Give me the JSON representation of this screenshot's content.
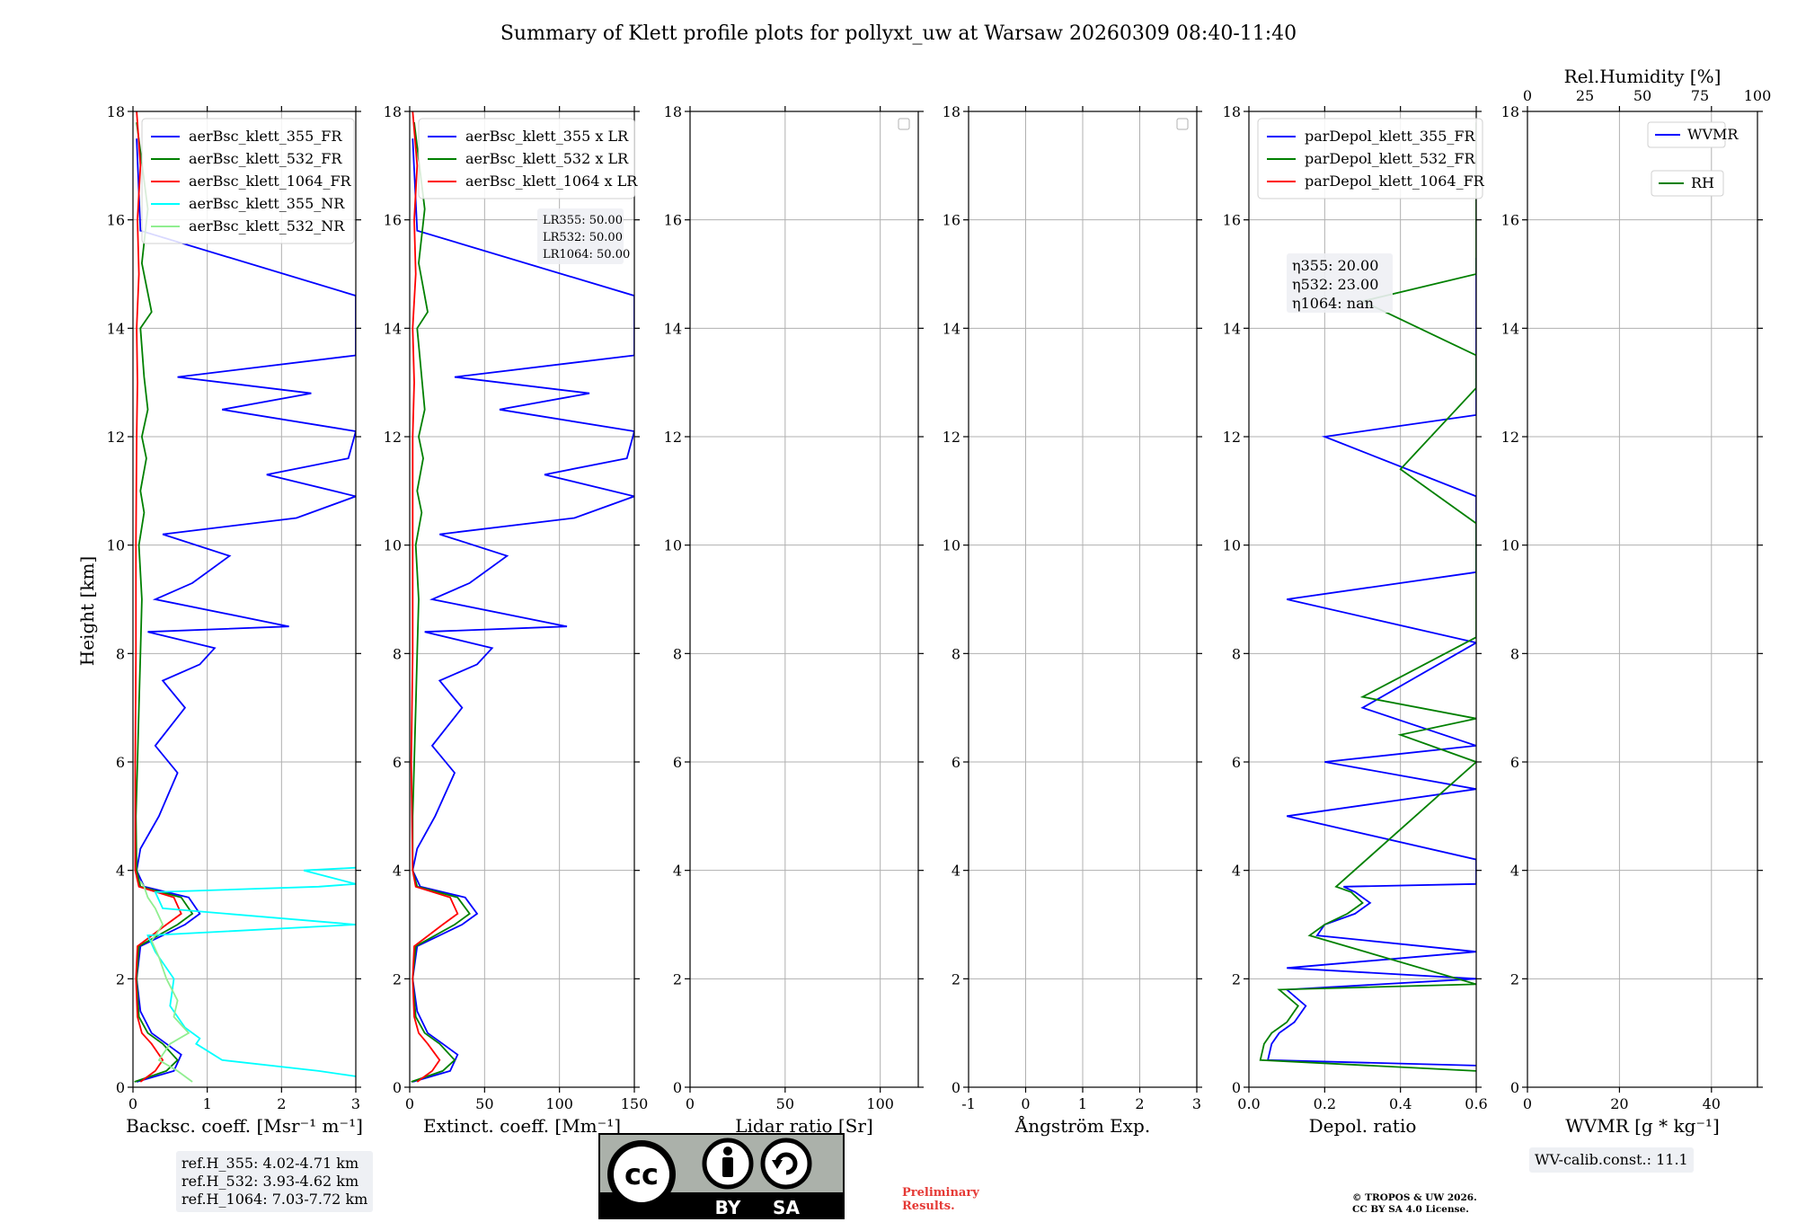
{
  "figure": {
    "title": "Summary of Klett profile plots for pollyxt_uw at Warsaw 20260309 08:40-11:40",
    "ylabel": "Height [km]",
    "reference_heights": [
      "ref.H_355: 4.02-4.71 km",
      "ref.H_532: 3.93-4.62 km",
      "ref.H_1064: 7.03-7.72 km"
    ],
    "wv_calib": "WV-calib.const.: 11.1",
    "preliminary": [
      "Preliminary",
      "Results."
    ],
    "copyright": [
      "© TROPOS & UW 2026.",
      "CC BY SA 4.0 License."
    ],
    "license_badge": {
      "icon": "cc-by-sa-icon",
      "text_by": "BY",
      "text_sa": "SA"
    }
  },
  "chart_data": [
    {
      "id": "bsc",
      "type": "line",
      "xlabel": "Backsc. coeff. [Msr⁻¹ m⁻¹]",
      "xlim": [
        0,
        3
      ],
      "xticks": [
        0,
        1,
        2,
        3
      ],
      "ylim": [
        0,
        18
      ],
      "yticks": [
        0,
        2,
        4,
        6,
        8,
        10,
        12,
        14,
        16,
        18
      ],
      "legend": [
        "aerBsc_klett_355_FR",
        "aerBsc_klett_532_FR",
        "aerBsc_klett_1064_FR",
        "aerBsc_klett_355_NR",
        "aerBsc_klett_532_NR"
      ],
      "series": [
        {
          "name": "aerBsc_klett_355_FR",
          "color": "#0000ff",
          "x": [
            0.05,
            0.55,
            0.65,
            0.45,
            0.25,
            0.1,
            0.05,
            0.1,
            0.7,
            0.9,
            0.75,
            0.15,
            0.05,
            0.1,
            0.35,
            0.6,
            0.3,
            0.7,
            0.4,
            0.9,
            1.1,
            0.2,
            2.1,
            0.3,
            0.8,
            1.3,
            0.4,
            2.2,
            3,
            1.8,
            2.9,
            3,
            1.2,
            2.4,
            0.6,
            3,
            3,
            3,
            0.1,
            0.05
          ],
          "y": [
            0.1,
            0.3,
            0.6,
            0.8,
            1,
            1.4,
            2,
            2.6,
            3,
            3.2,
            3.5,
            3.7,
            4,
            4.4,
            5,
            5.8,
            6.3,
            7,
            7.5,
            7.8,
            8.1,
            8.4,
            8.5,
            9,
            9.3,
            9.8,
            10.2,
            10.5,
            10.9,
            11.3,
            11.6,
            12.1,
            12.5,
            12.8,
            13.1,
            13.5,
            14.2,
            14.6,
            15.8,
            17.5
          ]
        },
        {
          "name": "aerBsc_klett_532_FR",
          "color": "#008000",
          "x": [
            0.02,
            0.45,
            0.6,
            0.4,
            0.2,
            0.08,
            0.05,
            0.08,
            0.6,
            0.8,
            0.65,
            0.1,
            0.05,
            0.04,
            0.06,
            0.08,
            0.1,
            0.12,
            0.08,
            0.15,
            0.1,
            0.18,
            0.12,
            0.2,
            0.15,
            0.1,
            0.25,
            0.12,
            0.2,
            0.05
          ],
          "y": [
            0.1,
            0.3,
            0.5,
            0.8,
            1,
            1.3,
            2,
            2.6,
            3,
            3.2,
            3.5,
            3.7,
            4,
            5,
            6,
            7,
            8,
            9,
            10,
            10.6,
            11,
            11.6,
            12,
            12.5,
            13.1,
            14,
            14.3,
            15.2,
            16.2,
            17.8
          ]
        },
        {
          "name": "aerBsc_klett_1064_FR",
          "color": "#ff0000",
          "x": [
            0.1,
            0.3,
            0.4,
            0.25,
            0.12,
            0.06,
            0.04,
            0.06,
            0.45,
            0.65,
            0.55,
            0.08,
            0.03,
            0.03,
            0.04,
            0.04,
            0.05,
            0.06,
            0.05,
            0.08,
            0.06,
            0.1,
            0.05
          ],
          "y": [
            0.1,
            0.3,
            0.5,
            0.8,
            1,
            1.3,
            2,
            2.6,
            3,
            3.2,
            3.5,
            3.7,
            4,
            6,
            8,
            10,
            12,
            13,
            14,
            15,
            16,
            17,
            18
          ]
        },
        {
          "name": "aerBsc_klett_355_NR",
          "color": "#00ffff",
          "x": [
            3,
            2.5,
            1.2,
            0.85,
            0.9,
            0.7,
            0.5,
            0.55,
            0.3,
            0.2,
            3,
            0.4,
            0.3,
            2.5,
            3,
            2.3,
            3
          ],
          "y": [
            0.2,
            0.3,
            0.5,
            0.8,
            0.9,
            1.1,
            1.5,
            2,
            2.5,
            2.8,
            3,
            3.3,
            3.6,
            3.7,
            3.75,
            4,
            4.05
          ]
        },
        {
          "name": "aerBsc_klett_532_NR",
          "color": "#90ee90",
          "x": [
            0.8,
            0.6,
            0.35,
            0.5,
            0.75,
            0.55,
            0.6,
            0.45,
            0.35,
            0.25,
            0.4,
            0.3,
            0.2,
            0.15,
            0.1
          ],
          "y": [
            0.1,
            0.3,
            0.5,
            0.8,
            1,
            1.3,
            1.6,
            2,
            2.4,
            2.7,
            3,
            3.3,
            3.5,
            3.7,
            3.8
          ]
        }
      ]
    },
    {
      "id": "ext",
      "type": "line",
      "xlabel": "Extinct. coeff. [Mm⁻¹]",
      "xlim": [
        0,
        150
      ],
      "xticks": [
        0,
        50,
        100,
        150
      ],
      "ylim": [
        0,
        18
      ],
      "yticks": [
        0,
        2,
        4,
        6,
        8,
        10,
        12,
        14,
        16,
        18
      ],
      "legend": [
        "aerBsc_klett_355 x LR",
        "aerBsc_klett_532 x LR",
        "aerBsc_klett_1064 x LR"
      ],
      "annotation": [
        "LR355: 50.00",
        "LR532: 50.00",
        "LR1064: 50.00"
      ],
      "series": [
        {
          "name": "aerBsc_klett_355 x LR",
          "color": "#0000ff",
          "x": [
            2,
            27,
            32,
            22,
            12,
            5,
            2,
            5,
            35,
            45,
            37,
            7,
            2,
            5,
            17,
            30,
            15,
            35,
            20,
            45,
            55,
            10,
            105,
            15,
            40,
            65,
            20,
            110,
            150,
            90,
            145,
            150,
            60,
            120,
            30,
            150,
            150,
            150,
            5,
            2
          ],
          "y": [
            0.1,
            0.3,
            0.6,
            0.8,
            1,
            1.4,
            2,
            2.6,
            3,
            3.2,
            3.5,
            3.7,
            4,
            4.4,
            5,
            5.8,
            6.3,
            7,
            7.5,
            7.8,
            8.1,
            8.4,
            8.5,
            9,
            9.3,
            9.8,
            10.2,
            10.5,
            10.9,
            11.3,
            11.6,
            12.1,
            12.5,
            12.8,
            13.1,
            13.5,
            14.2,
            14.6,
            15.8,
            17.5
          ]
        },
        {
          "name": "aerBsc_klett_532 x LR",
          "color": "#008000",
          "x": [
            1,
            22,
            30,
            20,
            10,
            4,
            2,
            4,
            30,
            40,
            32,
            5,
            2,
            2,
            3,
            4,
            5,
            6,
            4,
            8,
            5,
            9,
            6,
            10,
            8,
            5,
            12,
            6,
            10,
            3
          ],
          "y": [
            0.1,
            0.3,
            0.5,
            0.8,
            1,
            1.3,
            2,
            2.6,
            3,
            3.2,
            3.5,
            3.7,
            4,
            5,
            6,
            7,
            8,
            9,
            10,
            10.6,
            11,
            11.6,
            12,
            12.5,
            13.1,
            14,
            14.3,
            15.2,
            16.2,
            17.8
          ]
        },
        {
          "name": "aerBsc_klett_1064 x LR",
          "color": "#ff0000",
          "x": [
            5,
            15,
            20,
            12,
            6,
            3,
            2,
            3,
            22,
            32,
            27,
            4,
            2,
            1,
            2,
            2,
            2,
            3,
            2,
            4,
            3,
            5,
            2
          ],
          "y": [
            0.1,
            0.3,
            0.5,
            0.8,
            1,
            1.3,
            2,
            2.6,
            3,
            3.2,
            3.5,
            3.7,
            4,
            6,
            8,
            10,
            12,
            13,
            14,
            15,
            16,
            17,
            18
          ]
        }
      ]
    },
    {
      "id": "lr",
      "type": "line",
      "xlabel": "Lidar ratio [Sr]",
      "xlim": [
        0,
        120
      ],
      "xticks": [
        0,
        50,
        100
      ],
      "ylim": [
        0,
        18
      ],
      "yticks": [
        0,
        2,
        4,
        6,
        8,
        10,
        12,
        14,
        16,
        18
      ],
      "series": []
    },
    {
      "id": "ang",
      "type": "line",
      "xlabel": "Ångström Exp.",
      "xlim": [
        -1,
        3
      ],
      "xticks": [
        -1,
        0,
        1,
        2,
        3
      ],
      "ylim": [
        0,
        18
      ],
      "yticks": [
        0,
        2,
        4,
        6,
        8,
        10,
        12,
        14,
        16,
        18
      ],
      "series": []
    },
    {
      "id": "depol",
      "type": "line",
      "xlabel": "Depol. ratio",
      "xlim": [
        0,
        0.6
      ],
      "xticks": [
        0.0,
        0.2,
        0.4,
        0.6
      ],
      "ylim": [
        0,
        18
      ],
      "yticks": [
        0,
        2,
        4,
        6,
        8,
        10,
        12,
        14,
        16,
        18
      ],
      "legend": [
        "parDepol_klett_355_FR",
        "parDepol_klett_532_FR",
        "parDepol_klett_1064_FR"
      ],
      "annotation": [
        "η355: 20.00",
        "η532: 23.00",
        "η1064: nan"
      ],
      "series": [
        {
          "name": "parDepol_klett_355_FR",
          "color": "#0000ff",
          "x": [
            0.6,
            0.05,
            0.06,
            0.08,
            0.12,
            0.15,
            0.1,
            0.6,
            0.1,
            0.6,
            0.18,
            0.2,
            0.28,
            0.32,
            0.28,
            0.25,
            0.6,
            0.6,
            0.1,
            0.6,
            0.2,
            0.6,
            0.3,
            0.6,
            0.1,
            0.6,
            0.6,
            0.2,
            0.6,
            0.6,
            0.6
          ],
          "y": [
            0.4,
            0.5,
            0.8,
            1,
            1.2,
            1.5,
            1.8,
            2,
            2.2,
            2.5,
            2.8,
            3,
            3.2,
            3.4,
            3.6,
            3.7,
            3.75,
            4.2,
            5,
            5.5,
            6,
            6.3,
            7,
            8.2,
            9,
            9.5,
            10.9,
            12,
            12.4,
            14.6,
            15.3
          ]
        },
        {
          "name": "parDepol_klett_532_FR",
          "color": "#008000",
          "x": [
            0.6,
            0.03,
            0.04,
            0.06,
            0.1,
            0.13,
            0.08,
            0.6,
            0.16,
            0.2,
            0.26,
            0.3,
            0.27,
            0.23,
            0.6,
            0.4,
            0.6,
            0.3,
            0.6,
            0.6,
            0.4,
            0.6,
            0.6,
            0.3,
            0.6,
            0.6,
            0.6
          ],
          "y": [
            0.3,
            0.5,
            0.8,
            1,
            1.2,
            1.5,
            1.8,
            1.9,
            2.8,
            3,
            3.2,
            3.4,
            3.6,
            3.7,
            6,
            6.5,
            6.8,
            7.2,
            8.3,
            10.4,
            11.4,
            12.9,
            13.5,
            14.5,
            15,
            16.2,
            17.8
          ]
        }
      ]
    },
    {
      "id": "wv",
      "type": "line",
      "xlabel": "WVMR [g * kg⁻¹]",
      "xlim": [
        0,
        50
      ],
      "xticks": [
        0,
        20,
        40
      ],
      "top_xlabel": "Rel.Humidity [%]",
      "top_xlim": [
        0,
        100
      ],
      "top_xticks": [
        0,
        25,
        50,
        75,
        100
      ],
      "ylim": [
        0,
        18
      ],
      "yticks": [
        0,
        2,
        4,
        6,
        8,
        10,
        12,
        14,
        16,
        18
      ],
      "legend": [
        "WVMR",
        "RH"
      ],
      "series": []
    }
  ]
}
